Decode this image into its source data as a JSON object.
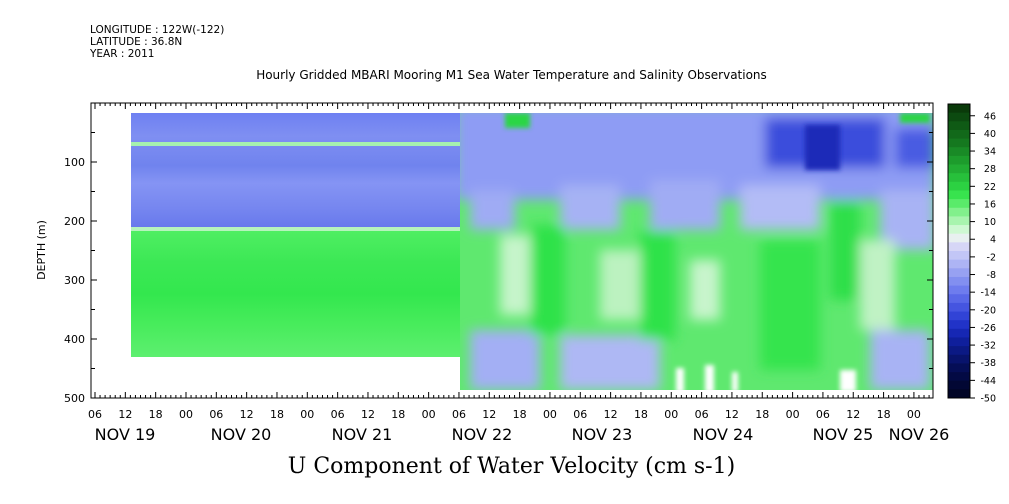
{
  "header": {
    "longitude": "LONGITUDE : 122W(-122)",
    "latitude": "LATITUDE : 36.8N",
    "year": "YEAR : 2011"
  },
  "chart_data": {
    "type": "heatmap",
    "title": "Hourly Gridded MBARI Mooring M1 Sea Water Temperature and Salinity Observations",
    "xlabel": "U Component of Water Velocity (cm s-1)",
    "ylabel": "DEPTH (m)",
    "y_range": [
      0,
      500
    ],
    "y_ticks": [
      100,
      200,
      300,
      400,
      500
    ],
    "y_reversed": true,
    "hour_ticks": [
      "06",
      "12",
      "18",
      "00",
      "06",
      "12",
      "18",
      "00",
      "06",
      "12",
      "18",
      "00",
      "06",
      "12",
      "18",
      "00",
      "06",
      "12",
      "18",
      "00",
      "06",
      "12",
      "18",
      "00",
      "06",
      "12",
      "18",
      "00"
    ],
    "day_labels": [
      "NOV 19",
      "NOV 20",
      "NOV 21",
      "NOV 22",
      "NOV 23",
      "NOV 24",
      "NOV 25",
      "NOV 26"
    ],
    "colorbar": {
      "min": -50,
      "max": 50,
      "step": 3,
      "tick_labels": [
        "46",
        "40",
        "34",
        "28",
        "22",
        "16",
        "10",
        "4",
        "-2",
        "-8",
        "-14",
        "-20",
        "-26",
        "-32",
        "-38",
        "-44",
        "-50"
      ],
      "colors": [
        "#0a3a0a",
        "#0c4a10",
        "#0f5a15",
        "#12691a",
        "#15781f",
        "#198a26",
        "#1d9c2c",
        "#22ad33",
        "#27c03b",
        "#2cd142",
        "#38e34e",
        "#5aeb6a",
        "#82f08c",
        "#a8f4ae",
        "#cef8d2",
        "#e8f0f0",
        "#d6d6f6",
        "#c2c6f6",
        "#adb4f4",
        "#97a1f2",
        "#828ff0",
        "#6e7cee",
        "#5968e8",
        "#4555e0",
        "#3143d6",
        "#2133c8",
        "#1627b4",
        "#0f1f9c",
        "#0b1984",
        "#08136c",
        "#050e56",
        "#030a44",
        "#020734",
        "#010526"
      ],
      "colors_order": "top-to-bottom (46 to -50)"
    },
    "fields": [
      {
        "name": "steady-period",
        "x_range": [
          "NOV 19 12:00",
          "NOV 22 06:00"
        ],
        "layers": [
          {
            "depth_range": [
              20,
              220
            ],
            "u": -20
          },
          {
            "depth_range": [
              68,
              74
            ],
            "u": 3
          },
          {
            "depth_range": [
              220,
              430
            ],
            "u": 18
          }
        ]
      },
      {
        "name": "variable-period",
        "x_range": [
          "NOV 22 06:00",
          "NOV 26 00:00"
        ],
        "depth_range": [
          20,
          490
        ],
        "u_range": [
          -45,
          30
        ]
      }
    ]
  }
}
